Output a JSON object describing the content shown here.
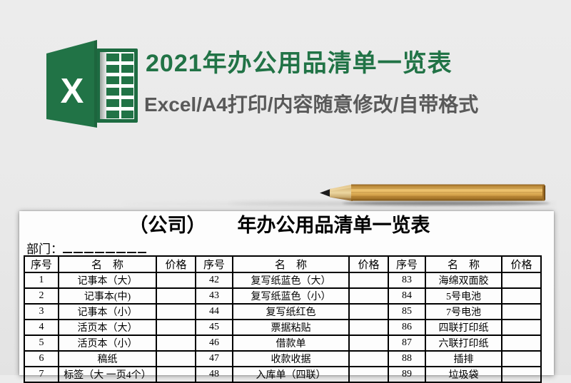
{
  "hero": {
    "title": "2021年办公用品清单一览表",
    "subtitle": "Excel/A4打印/内容随意修改/自带格式",
    "accent_color": "#217346",
    "subtitle_color": "#595959",
    "logo": {
      "name": "excel-logo",
      "letter": "X",
      "green": "#217346"
    }
  },
  "decor": {
    "pencil": "wooden-pencil"
  },
  "paper": {
    "title_prefix": "（公司）",
    "title_main": "年办公用品清单一览表",
    "department_label": "部门：",
    "table": {
      "headers": [
        "序号",
        "名　称",
        "价格"
      ],
      "groups": [
        {
          "items": [
            {
              "no": "1",
              "name": "记事本（大）",
              "price": ""
            },
            {
              "no": "2",
              "name": "记事本(中)",
              "price": ""
            },
            {
              "no": "3",
              "name": "记事本（小）",
              "price": ""
            },
            {
              "no": "4",
              "name": "活页本（大）",
              "price": ""
            },
            {
              "no": "5",
              "name": "活页本（小）",
              "price": ""
            },
            {
              "no": "6",
              "name": "稿纸",
              "price": ""
            },
            {
              "no": "7",
              "name": "标签（大 一页4个）",
              "price": ""
            }
          ]
        },
        {
          "items": [
            {
              "no": "42",
              "name": "复写纸蓝色（大）",
              "price": ""
            },
            {
              "no": "43",
              "name": "复写纸蓝色（小）",
              "price": ""
            },
            {
              "no": "44",
              "name": "复写纸红色",
              "price": ""
            },
            {
              "no": "45",
              "name": "票据粘贴",
              "price": ""
            },
            {
              "no": "46",
              "name": "借款单",
              "price": ""
            },
            {
              "no": "47",
              "name": "收款收据",
              "price": ""
            },
            {
              "no": "48",
              "name": "入库单（四联）",
              "price": ""
            }
          ]
        },
        {
          "items": [
            {
              "no": "83",
              "name": "海绵双面胶",
              "price": ""
            },
            {
              "no": "84",
              "name": "5号电池",
              "price": ""
            },
            {
              "no": "85",
              "name": "7号电池",
              "price": ""
            },
            {
              "no": "86",
              "name": "四联打印纸",
              "price": ""
            },
            {
              "no": "87",
              "name": "六联打印纸",
              "price": ""
            },
            {
              "no": "88",
              "name": "插排",
              "price": ""
            },
            {
              "no": "89",
              "name": "垃圾袋",
              "price": ""
            }
          ]
        }
      ]
    }
  }
}
